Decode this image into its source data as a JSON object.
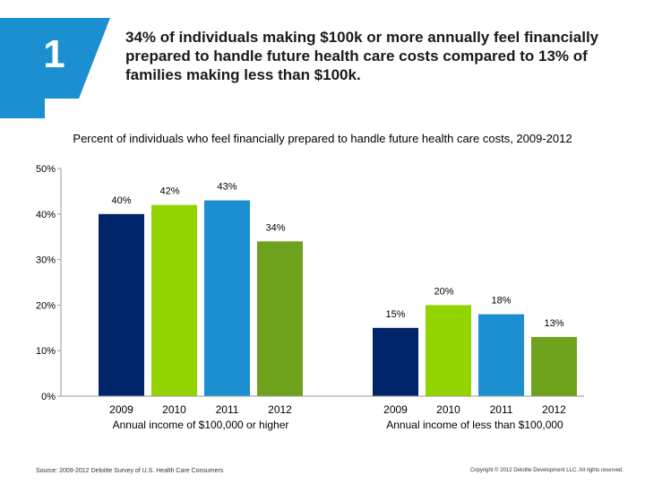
{
  "badge": {
    "number": "1"
  },
  "headline": "34% of individuals making $100k or more annually feel financially prepared to handle future health care costs compared to 13% of families making less than $100k.",
  "colors": {
    "badge": "#1b8fd0",
    "navy": "#002469",
    "green": "#86bc25",
    "lime": "#92d400",
    "blue": "#1b8fd0",
    "dark_green": "#6fa21c",
    "axis": "#999999"
  },
  "chart_data": {
    "type": "bar",
    "title": "Percent of individuals who feel financially prepared to handle future health care costs, 2009-2012",
    "ylim": [
      0,
      50
    ],
    "yticks": [
      {
        "value": 0,
        "label": "0%"
      },
      {
        "value": 10,
        "label": "10%"
      },
      {
        "value": 20,
        "label": "20%"
      },
      {
        "value": 30,
        "label": "30%"
      },
      {
        "value": 40,
        "label": "40%"
      },
      {
        "value": 50,
        "label": "50%"
      }
    ],
    "categories": [
      "2009",
      "2010",
      "2011",
      "2012"
    ],
    "groups": [
      {
        "name": "Annual income of $100,000 or higher",
        "values": [
          40,
          42,
          43,
          34
        ],
        "labels": [
          "40%",
          "42%",
          "43%",
          "34%"
        ]
      },
      {
        "name": "Annual income of less than $100,000",
        "values": [
          15,
          20,
          18,
          13
        ],
        "labels": [
          "15%",
          "20%",
          "18%",
          "13%"
        ]
      }
    ],
    "series_colors": [
      "#002469",
      "#92d400",
      "#1b8fd0",
      "#6fa21c"
    ]
  },
  "footer": {
    "source": "Source: 2009-2012 Deloitte Survey of U.S. Health Care Consumers",
    "copyright": "Copyright © 2012 Deloitte Development LLC. All rights reserved."
  }
}
